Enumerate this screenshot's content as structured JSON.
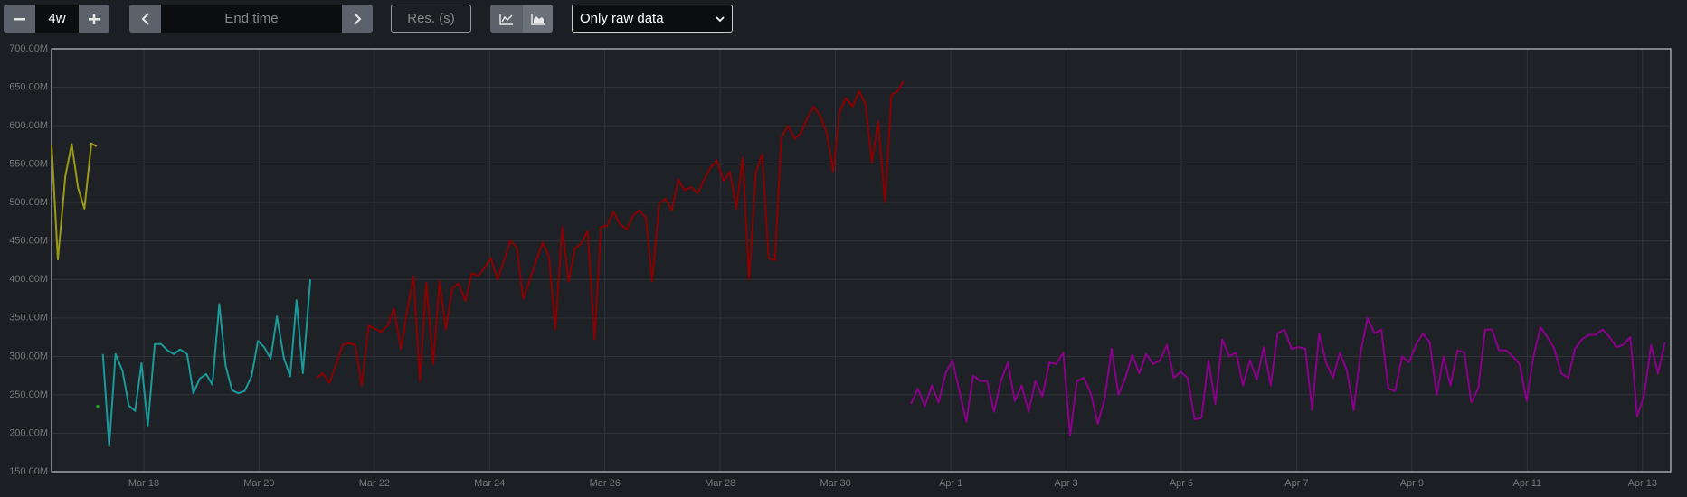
{
  "toolbar": {
    "range": "4w",
    "end_time": "End time",
    "resolution": "Res. (s)",
    "select": "Only raw data"
  },
  "chart_data": {
    "type": "line",
    "xlim": [
      16.4,
      44.49
    ],
    "ylim": [
      150,
      700
    ],
    "xticks": [
      {
        "value": 18,
        "label": "Mar 18"
      },
      {
        "value": 20,
        "label": "Mar 20"
      },
      {
        "value": 22,
        "label": "Mar 22"
      },
      {
        "value": 24,
        "label": "Mar 24"
      },
      {
        "value": 26,
        "label": "Mar 26"
      },
      {
        "value": 28,
        "label": "Mar 28"
      },
      {
        "value": 30,
        "label": "Mar 30"
      },
      {
        "value": 32,
        "label": "Apr 1"
      },
      {
        "value": 34,
        "label": "Apr 3"
      },
      {
        "value": 36,
        "label": "Apr 5"
      },
      {
        "value": 38,
        "label": "Apr 7"
      },
      {
        "value": 40,
        "label": "Apr 9"
      },
      {
        "value": 42,
        "label": "Apr 11"
      },
      {
        "value": 44,
        "label": "Apr 13"
      }
    ],
    "yticks": [
      {
        "value": 150,
        "label": "150.00M"
      },
      {
        "value": 200,
        "label": "200.00M"
      },
      {
        "value": 250,
        "label": "250.00M"
      },
      {
        "value": 300,
        "label": "300.00M"
      },
      {
        "value": 350,
        "label": "350.00M"
      },
      {
        "value": 400,
        "label": "400.00M"
      },
      {
        "value": 450,
        "label": "450.00M"
      },
      {
        "value": 500,
        "label": "500.00M"
      },
      {
        "value": 550,
        "label": "550.00M"
      },
      {
        "value": 600,
        "label": "600.00M"
      },
      {
        "value": 650,
        "label": "650.00M"
      },
      {
        "value": 700,
        "label": "700.00M"
      }
    ],
    "grid": true,
    "series": [
      {
        "color": "#9a9a14",
        "x": [
          16.4,
          16.51,
          16.64,
          16.75,
          16.86,
          16.97,
          17.09,
          17.18
        ],
        "values": [
          575,
          426,
          535,
          576,
          519,
          492,
          577,
          573
        ]
      },
      {
        "color": "#2a9a2a",
        "x": [
          17.2
        ],
        "values": [
          235
        ]
      },
      {
        "color": "#1a9a9a",
        "x": [
          17.29,
          17.4,
          17.51,
          17.63,
          17.74,
          17.85,
          17.96,
          18.07,
          18.19,
          18.3,
          18.41,
          18.52,
          18.63,
          18.75,
          18.86,
          18.97,
          19.08,
          19.19,
          19.31,
          19.42,
          19.53,
          19.64,
          19.75,
          19.87,
          19.98,
          20.09,
          20.2,
          20.31,
          20.43,
          20.54,
          20.65,
          20.76,
          20.89
        ],
        "values": [
          303,
          183,
          303,
          281,
          236,
          229,
          291,
          210,
          316,
          316,
          308,
          303,
          309,
          303,
          252,
          271,
          277,
          263,
          368,
          288,
          256,
          252,
          255,
          274,
          320,
          312,
          297,
          352,
          298,
          274,
          373,
          278,
          400
        ]
      },
      {
        "color": "#8b0000",
        "x": [
          21.0,
          21.11,
          21.22,
          21.34,
          21.45,
          21.56,
          21.67,
          21.78,
          21.9,
          22.01,
          22.12,
          22.23,
          22.34,
          22.46,
          22.57,
          22.68,
          22.79,
          22.9,
          23.02,
          23.13,
          23.24,
          23.35,
          23.46,
          23.58,
          23.69,
          23.8,
          23.91,
          24.02,
          24.14,
          24.25,
          24.36,
          24.47,
          24.58,
          24.7,
          24.81,
          24.92,
          25.03,
          25.14,
          25.26,
          25.37,
          25.48,
          25.59,
          25.7,
          25.82,
          25.93,
          26.04,
          26.15,
          26.26,
          26.38,
          26.49,
          26.6,
          26.71,
          26.82,
          26.94,
          27.05,
          27.16,
          27.27,
          27.38,
          27.5,
          27.61,
          27.72,
          27.83,
          27.94,
          28.06,
          28.17,
          28.28,
          28.39,
          28.5,
          28.62,
          28.73,
          28.84,
          28.95,
          29.06,
          29.18,
          29.29,
          29.4,
          29.51,
          29.62,
          29.74,
          29.85,
          29.96,
          30.07,
          30.18,
          30.3,
          30.41,
          30.52,
          30.63,
          30.74,
          30.86,
          30.97,
          31.08,
          31.18
        ],
        "values": [
          272,
          278,
          265,
          290,
          315,
          317,
          315,
          262,
          340,
          336,
          332,
          340,
          362,
          310,
          360,
          404,
          268,
          396,
          290,
          398,
          335,
          388,
          395,
          372,
          408,
          405,
          415,
          428,
          400,
          425,
          450,
          442,
          375,
          400,
          425,
          448,
          430,
          335,
          468,
          397,
          440,
          447,
          463,
          322,
          468,
          470,
          488,
          472,
          465,
          483,
          490,
          480,
          398,
          498,
          505,
          490,
          530,
          516,
          520,
          512,
          530,
          545,
          555,
          528,
          540,
          492,
          558,
          400,
          540,
          563,
          428,
          425,
          585,
          600,
          583,
          590,
          610,
          625,
          612,
          590,
          540,
          618,
          636,
          625,
          645,
          628,
          552,
          605,
          500,
          640,
          645,
          658
        ]
      },
      {
        "color": "#8b008b",
        "x": [
          31.31,
          31.43,
          31.55,
          31.67,
          31.79,
          31.91,
          32.03,
          32.15,
          32.27,
          32.39,
          32.51,
          32.63,
          32.75,
          32.87,
          32.99,
          33.11,
          33.23,
          33.35,
          33.47,
          33.59,
          33.71,
          33.83,
          33.95,
          34.07,
          34.19,
          34.31,
          34.43,
          34.55,
          34.67,
          34.79,
          34.91,
          35.03,
          35.15,
          35.27,
          35.39,
          35.51,
          35.63,
          35.75,
          35.87,
          35.99,
          36.11,
          36.23,
          36.35,
          36.47,
          36.59,
          36.71,
          36.83,
          36.95,
          37.07,
          37.19,
          37.31,
          37.43,
          37.55,
          37.67,
          37.79,
          37.91,
          38.03,
          38.15,
          38.27,
          38.39,
          38.51,
          38.63,
          38.75,
          38.87,
          38.99,
          39.11,
          39.23,
          39.35,
          39.47,
          39.59,
          39.71,
          39.83,
          39.95,
          40.07,
          40.19,
          40.31,
          40.43,
          40.55,
          40.67,
          40.79,
          40.91,
          41.03,
          41.15,
          41.27,
          41.39,
          41.51,
          41.63,
          41.75,
          41.87,
          41.99,
          42.11,
          42.23,
          42.35,
          42.47,
          42.59,
          42.71,
          42.83,
          42.95,
          43.07,
          43.19,
          43.31,
          43.43,
          43.55,
          43.67,
          43.79,
          43.91,
          44.03,
          44.15,
          44.27,
          44.39
        ],
        "values": [
          238,
          258,
          235,
          262,
          240,
          278,
          295,
          255,
          215,
          275,
          268,
          268,
          228,
          268,
          292,
          242,
          262,
          228,
          268,
          248,
          292,
          290,
          305,
          197,
          268,
          272,
          252,
          212,
          245,
          310,
          250,
          272,
          302,
          278,
          303,
          290,
          295,
          315,
          272,
          280,
          272,
          218,
          220,
          295,
          238,
          322,
          300,
          305,
          262,
          295,
          270,
          312,
          262,
          330,
          335,
          310,
          312,
          310,
          230,
          330,
          292,
          272,
          305,
          282,
          230,
          305,
          350,
          330,
          335,
          258,
          255,
          300,
          292,
          315,
          330,
          318,
          250,
          300,
          262,
          308,
          305,
          240,
          258,
          335,
          335,
          308,
          308,
          300,
          290,
          242,
          300,
          338,
          325,
          310,
          278,
          272,
          310,
          322,
          328,
          328,
          335,
          325,
          312,
          315,
          325,
          222,
          250,
          315,
          278,
          318
        ]
      }
    ]
  }
}
